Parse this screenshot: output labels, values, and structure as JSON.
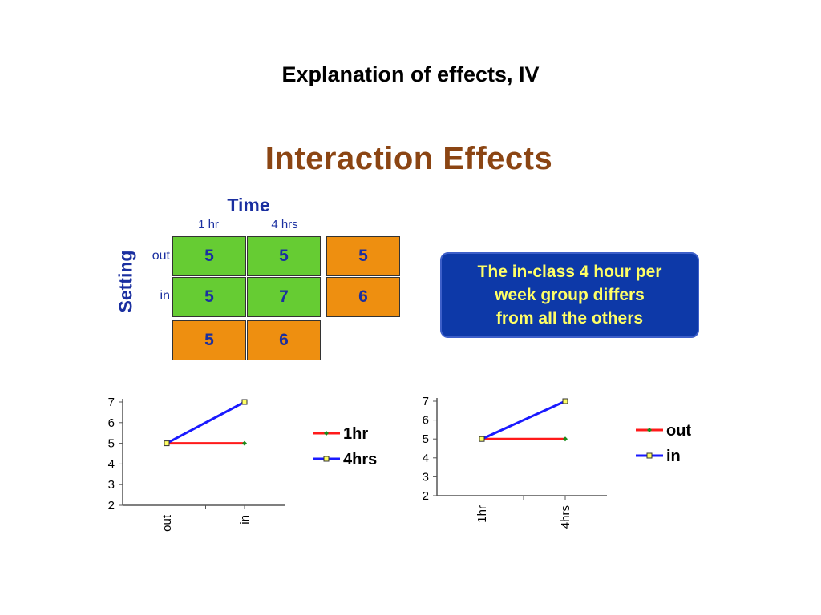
{
  "slide_title": "Explanation of effects, IV",
  "figure_title": "Interaction Effects",
  "table": {
    "column_factor": "Time",
    "row_factor": "Setting",
    "columns": [
      "1 hr",
      "4 hrs"
    ],
    "rows": [
      "out",
      "in"
    ],
    "cells": [
      [
        "5",
        "5"
      ],
      [
        "5",
        "7"
      ]
    ],
    "row_means": [
      "5",
      "6"
    ],
    "column_means": [
      "5",
      "6"
    ]
  },
  "callout": {
    "lines": [
      "The in-class 4 hour per",
      "week group differs",
      "from all the others"
    ]
  },
  "colors": {
    "red": "#ff1a1a",
    "blue": "#1a1aff",
    "green_cell": "#66cc33",
    "orange_cell": "#ee8f10",
    "callout_bg": "#0d39a8",
    "callout_text": "#ffff66"
  },
  "chart_data": [
    {
      "type": "line",
      "categories": [
        "out",
        "in"
      ],
      "series": [
        {
          "name": "1hr",
          "values": [
            5,
            5
          ],
          "color": "#ff1a1a",
          "marker": "green-diamond"
        },
        {
          "name": "4hrs",
          "values": [
            5,
            7
          ],
          "color": "#1a1aff",
          "marker": "yellow-square"
        }
      ],
      "ylim": [
        2,
        7
      ],
      "yticks": [
        "2",
        "3",
        "4",
        "5",
        "6",
        "7"
      ],
      "legend": "right"
    },
    {
      "type": "line",
      "categories": [
        "1hr",
        "4hrs"
      ],
      "series": [
        {
          "name": "out",
          "values": [
            5,
            5
          ],
          "color": "#ff1a1a",
          "marker": "green-diamond"
        },
        {
          "name": "in",
          "values": [
            5,
            7
          ],
          "color": "#1a1aff",
          "marker": "yellow-square"
        }
      ],
      "ylim": [
        2,
        7
      ],
      "yticks": [
        "2",
        "3",
        "4",
        "5",
        "6",
        "7"
      ],
      "legend": "right"
    }
  ]
}
